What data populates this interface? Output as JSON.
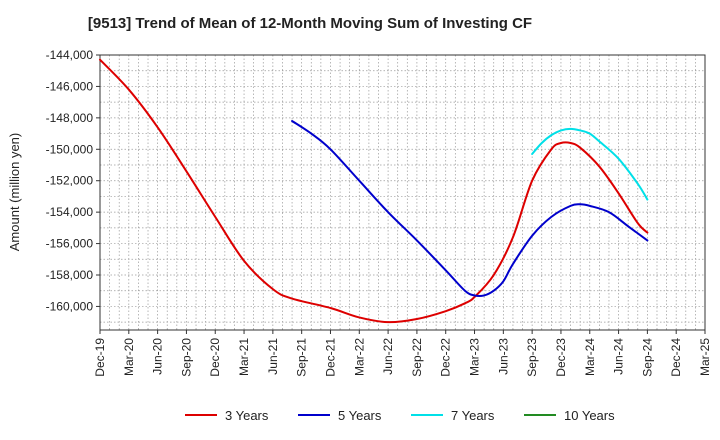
{
  "chart_data": {
    "type": "line",
    "title": "[9513]  Trend of Mean of 12-Month Moving Sum of Investing CF",
    "xlabel": "",
    "ylabel": "Amount (million yen)",
    "ylim": [
      -161500,
      -144000
    ],
    "yticks": [
      -144000,
      -146000,
      -148000,
      -150000,
      -152000,
      -154000,
      -156000,
      -158000,
      -160000
    ],
    "ytick_labels": [
      "-144,000",
      "-146,000",
      "-148,000",
      "-150,000",
      "-152,000",
      "-154,000",
      "-156,000",
      "-158,000",
      "-160,000"
    ],
    "xlim": [
      0,
      63
    ],
    "xtick_labels": [
      "Dec-19",
      "Mar-20",
      "Jun-20",
      "Sep-20",
      "Dec-20",
      "Mar-21",
      "Jun-21",
      "Sep-21",
      "Dec-21",
      "Mar-22",
      "Jun-22",
      "Sep-22",
      "Dec-22",
      "Mar-23",
      "Jun-23",
      "Sep-23",
      "Dec-23",
      "Mar-24",
      "Jun-24",
      "Sep-24",
      "Dec-24",
      "Mar-25"
    ],
    "grid": true,
    "legend_position": "bottom",
    "series": [
      {
        "name": "3 Years",
        "color": "#dd0000",
        "points": [
          [
            0,
            -144300
          ],
          [
            3,
            -146200
          ],
          [
            6,
            -148600
          ],
          [
            9,
            -151400
          ],
          [
            12,
            -154300
          ],
          [
            15,
            -157100
          ],
          [
            18,
            -158900
          ],
          [
            20,
            -159500
          ],
          [
            24,
            -160100
          ],
          [
            27,
            -160700
          ],
          [
            30,
            -161000
          ],
          [
            33,
            -160800
          ],
          [
            36,
            -160300
          ],
          [
            38,
            -159800
          ],
          [
            39,
            -159400
          ],
          [
            41,
            -158000
          ],
          [
            43,
            -155600
          ],
          [
            45,
            -152000
          ],
          [
            47,
            -150000
          ],
          [
            48,
            -149600
          ],
          [
            49,
            -149600
          ],
          [
            50,
            -149900
          ],
          [
            52,
            -151100
          ],
          [
            54,
            -152800
          ],
          [
            56,
            -154700
          ],
          [
            57,
            -155300
          ]
        ]
      },
      {
        "name": "5 Years",
        "color": "#0000cc",
        "points": [
          [
            20,
            -148200
          ],
          [
            22,
            -149000
          ],
          [
            24,
            -150000
          ],
          [
            27,
            -152000
          ],
          [
            30,
            -154000
          ],
          [
            33,
            -155800
          ],
          [
            36,
            -157700
          ],
          [
            38,
            -159000
          ],
          [
            39,
            -159300
          ],
          [
            40,
            -159300
          ],
          [
            41,
            -159000
          ],
          [
            42,
            -158400
          ],
          [
            43,
            -157300
          ],
          [
            45,
            -155500
          ],
          [
            47,
            -154300
          ],
          [
            49,
            -153600
          ],
          [
            50,
            -153500
          ],
          [
            51,
            -153600
          ],
          [
            53,
            -154000
          ],
          [
            55,
            -154900
          ],
          [
            57,
            -155800
          ]
        ]
      },
      {
        "name": "7 Years",
        "color": "#00e0e8",
        "points": [
          [
            45,
            -150300
          ],
          [
            46,
            -149600
          ],
          [
            47,
            -149100
          ],
          [
            48,
            -148800
          ],
          [
            49,
            -148700
          ],
          [
            50,
            -148800
          ],
          [
            51,
            -149000
          ],
          [
            52,
            -149500
          ],
          [
            54,
            -150600
          ],
          [
            56,
            -152200
          ],
          [
            57,
            -153200
          ]
        ]
      },
      {
        "name": "10 Years",
        "color": "#228b22",
        "points": []
      }
    ]
  }
}
